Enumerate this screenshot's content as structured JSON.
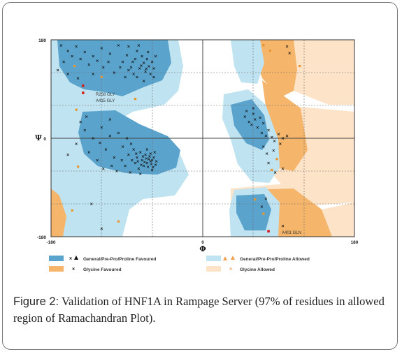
{
  "caption": {
    "figure_label": "Figure 2:",
    "text": " Validation of HNF1A in Rampage Server (97% of residues in allowed region of Ramachandran Plot)."
  },
  "colors": {
    "general_favoured": "#5aa3cc",
    "general_allowed": "#bfe3f0",
    "glycine_favoured": "#f5b56a",
    "glycine_allowed": "#fde3c8",
    "points": "#111111",
    "glycine_points": "#e8962d",
    "outlier": "#d62020"
  },
  "chart_data": {
    "type": "scatter",
    "title": "",
    "xlabel": "Φ",
    "ylabel": "Ψ",
    "xlim": [
      -180,
      180
    ],
    "ylim": [
      -180,
      180
    ],
    "x_ticks": [
      "-180",
      "0",
      "180"
    ],
    "y_ticks": [
      "180",
      "0",
      "-180"
    ],
    "grid": true,
    "legend": [
      {
        "label": "General/Pre-Pro/Proline Favoured",
        "marker": "cross-triangle",
        "swatch": "#5aa3cc"
      },
      {
        "label": "General/Pre-Pro/Proline Allowed",
        "marker": "triangle",
        "swatch": "#bfe3f0"
      },
      {
        "label": "Glycine Favoured",
        "marker": "x",
        "swatch": "#f5b56a"
      },
      {
        "label": "Glycine Allowed",
        "marker": "x",
        "swatch": "#fde3c8"
      }
    ],
    "annotations": [
      {
        "text": "R258 GLY",
        "x": -135,
        "y": 95
      },
      {
        "text": "A415 GLY",
        "x": -135,
        "y": 82
      },
      {
        "text": "A401 GLN",
        "x": 80,
        "y": -168
      }
    ],
    "outliers": [
      {
        "x": -142,
        "y": 96
      },
      {
        "x": -142,
        "y": 83
      },
      {
        "x": 78,
        "y": -170
      }
    ],
    "glycine_points": [
      {
        "x": -152,
        "y": 132
      },
      {
        "x": -120,
        "y": 112
      },
      {
        "x": -150,
        "y": 52
      },
      {
        "x": -148,
        "y": -52
      },
      {
        "x": -155,
        "y": -132
      },
      {
        "x": -100,
        "y": -152
      },
      {
        "x": -80,
        "y": 72
      },
      {
        "x": 72,
        "y": -138
      },
      {
        "x": 62,
        "y": -112
      },
      {
        "x": 88,
        "y": -38
      },
      {
        "x": 82,
        "y": -58
      },
      {
        "x": 115,
        "y": 132
      },
      {
        "x": 72,
        "y": 170
      },
      {
        "x": 80,
        "y": 160
      }
    ],
    "general_points": [
      {
        "x": -168,
        "y": 170
      },
      {
        "x": -160,
        "y": 160
      },
      {
        "x": -150,
        "y": 168
      },
      {
        "x": -140,
        "y": 158
      },
      {
        "x": -130,
        "y": 150
      },
      {
        "x": -120,
        "y": 165
      },
      {
        "x": -110,
        "y": 155
      },
      {
        "x": -100,
        "y": 170
      },
      {
        "x": -95,
        "y": 140
      },
      {
        "x": -90,
        "y": 152
      },
      {
        "x": -85,
        "y": 130
      },
      {
        "x": -80,
        "y": 145
      },
      {
        "x": -78,
        "y": 160
      },
      {
        "x": -75,
        "y": 128
      },
      {
        "x": -72,
        "y": 150
      },
      {
        "x": -70,
        "y": 138
      },
      {
        "x": -68,
        "y": 122
      },
      {
        "x": -66,
        "y": 145
      },
      {
        "x": -64,
        "y": 132
      },
      {
        "x": -62,
        "y": 118
      },
      {
        "x": -60,
        "y": 140
      },
      {
        "x": -58,
        "y": 128
      },
      {
        "x": -56,
        "y": 150
      },
      {
        "x": -82,
        "y": 118
      },
      {
        "x": -88,
        "y": 125
      },
      {
        "x": -92,
        "y": 112
      },
      {
        "x": -98,
        "y": 130
      },
      {
        "x": -105,
        "y": 120
      },
      {
        "x": -112,
        "y": 140
      },
      {
        "x": -118,
        "y": 130
      },
      {
        "x": -125,
        "y": 142
      },
      {
        "x": -135,
        "y": 135
      },
      {
        "x": -145,
        "y": 145
      },
      {
        "x": -155,
        "y": 150
      },
      {
        "x": -165,
        "y": 140
      },
      {
        "x": -172,
        "y": 125
      },
      {
        "x": -160,
        "y": 118
      },
      {
        "x": -148,
        "y": 110
      },
      {
        "x": -130,
        "y": 118
      },
      {
        "x": -78,
        "y": 112
      },
      {
        "x": -70,
        "y": 105
      },
      {
        "x": -65,
        "y": 158
      },
      {
        "x": -76,
        "y": 170
      },
      {
        "x": -88,
        "y": 168
      },
      {
        "x": -58,
        "y": 112
      },
      {
        "x": -83,
        "y": 140
      },
      {
        "x": -73,
        "y": 133
      },
      {
        "x": -67,
        "y": 127
      },
      {
        "x": -60,
        "y": -40
      },
      {
        "x": -62,
        "y": -42
      },
      {
        "x": -64,
        "y": -38
      },
      {
        "x": -66,
        "y": -45
      },
      {
        "x": -58,
        "y": -35
      },
      {
        "x": -56,
        "y": -48
      },
      {
        "x": -68,
        "y": -30
      },
      {
        "x": -70,
        "y": -50
      },
      {
        "x": -72,
        "y": -40
      },
      {
        "x": -74,
        "y": -25
      },
      {
        "x": -76,
        "y": -55
      },
      {
        "x": -55,
        "y": -42
      },
      {
        "x": -62,
        "y": -28
      },
      {
        "x": -65,
        "y": -52
      },
      {
        "x": -60,
        "y": -58
      },
      {
        "x": -66,
        "y": -20
      },
      {
        "x": -78,
        "y": -35
      },
      {
        "x": -80,
        "y": -45
      },
      {
        "x": -82,
        "y": -20
      },
      {
        "x": -85,
        "y": -10
      },
      {
        "x": -88,
        "y": -30
      },
      {
        "x": -90,
        "y": 0
      },
      {
        "x": -92,
        "y": -50
      },
      {
        "x": -95,
        "y": -15
      },
      {
        "x": -100,
        "y": 10
      },
      {
        "x": -105,
        "y": -35
      },
      {
        "x": -110,
        "y": 5
      },
      {
        "x": -115,
        "y": -20
      },
      {
        "x": -120,
        "y": 20
      },
      {
        "x": -125,
        "y": -40
      },
      {
        "x": -130,
        "y": 0
      },
      {
        "x": -135,
        "y": -25
      },
      {
        "x": -140,
        "y": 15
      },
      {
        "x": -150,
        "y": -10
      },
      {
        "x": -160,
        "y": -30
      },
      {
        "x": -145,
        "y": 30
      },
      {
        "x": -118,
        "y": -55
      },
      {
        "x": -102,
        "y": -60
      },
      {
        "x": -86,
        "y": -62
      },
      {
        "x": -74,
        "y": -65
      },
      {
        "x": -57,
        "y": -25
      },
      {
        "x": -61,
        "y": -47
      },
      {
        "x": -63,
        "y": -33
      },
      {
        "x": -59,
        "y": -53
      },
      {
        "x": -67,
        "y": -37
      },
      {
        "x": -69,
        "y": -43
      },
      {
        "x": -71,
        "y": -33
      },
      {
        "x": -73,
        "y": -48
      },
      {
        "x": -77,
        "y": -42
      },
      {
        "x": -79,
        "y": -28
      },
      {
        "x": -84,
        "y": -40
      },
      {
        "x": -96,
        "y": -40
      },
      {
        "x": -108,
        "y": -50
      },
      {
        "x": -122,
        "y": -8
      },
      {
        "x": -138,
        "y": 40
      },
      {
        "x": -110,
        "y": 35
      },
      {
        "x": -132,
        "y": -120
      },
      {
        "x": -120,
        "y": -165
      },
      {
        "x": 50,
        "y": 40
      },
      {
        "x": 55,
        "y": 30
      },
      {
        "x": 60,
        "y": 45
      },
      {
        "x": 62,
        "y": 35
      },
      {
        "x": 58,
        "y": 25
      },
      {
        "x": 65,
        "y": 20
      },
      {
        "x": 68,
        "y": 38
      },
      {
        "x": 52,
        "y": 50
      },
      {
        "x": 70,
        "y": 10
      },
      {
        "x": 72,
        "y": 28
      },
      {
        "x": 75,
        "y": 5
      },
      {
        "x": 78,
        "y": 15
      },
      {
        "x": 82,
        "y": 2
      },
      {
        "x": 85,
        "y": -5
      },
      {
        "x": 90,
        "y": 8
      },
      {
        "x": 95,
        "y": 0
      },
      {
        "x": 100,
        "y": 5
      },
      {
        "x": 72,
        "y": -15
      },
      {
        "x": 76,
        "y": -28
      },
      {
        "x": 84,
        "y": -22
      },
      {
        "x": 92,
        "y": -10
      },
      {
        "x": 78,
        "y": -45
      },
      {
        "x": 86,
        "y": -62
      },
      {
        "x": 95,
        "y": -55
      },
      {
        "x": 70,
        "y": -125
      },
      {
        "x": 75,
        "y": -110
      },
      {
        "x": 95,
        "y": -160
      },
      {
        "x": 100,
        "y": 168
      },
      {
        "x": 103,
        "y": 156
      },
      {
        "x": 60,
        "y": 55
      }
    ]
  }
}
